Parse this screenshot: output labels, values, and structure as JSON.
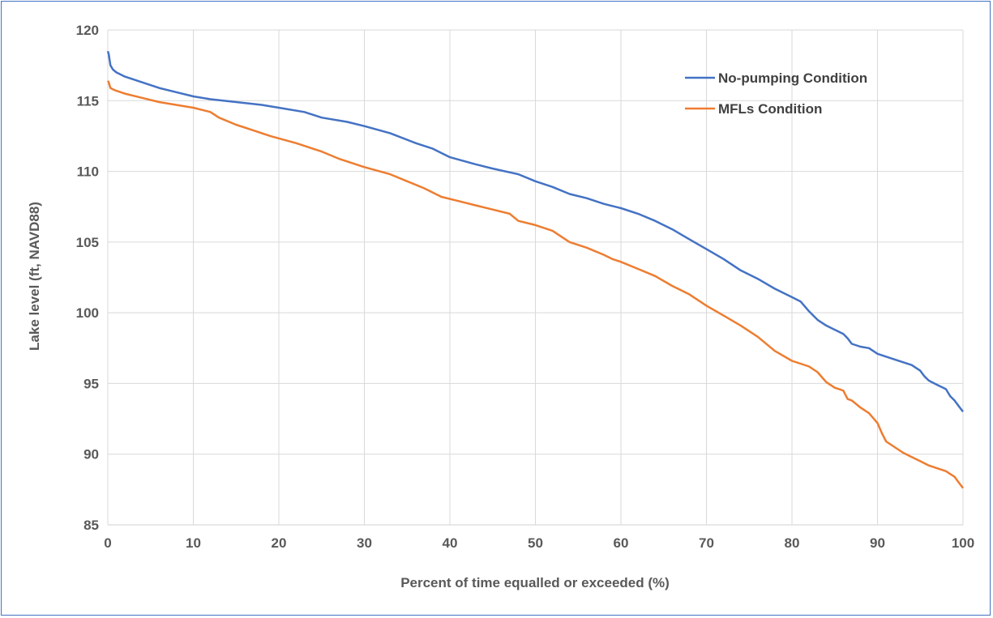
{
  "chart_data": {
    "type": "line",
    "title": "",
    "xlabel": "Percent of time equalled or exceeded (%)",
    "ylabel": "Lake level (ft, NAVD88)",
    "xlim": [
      0,
      100
    ],
    "ylim": [
      85,
      120
    ],
    "x_ticks": [
      "0",
      "10",
      "20",
      "30",
      "40",
      "50",
      "60",
      "70",
      "80",
      "90",
      "100"
    ],
    "y_ticks": [
      "85",
      "90",
      "95",
      "100",
      "105",
      "110",
      "115",
      "120"
    ],
    "x_tick_values": [
      0,
      10,
      20,
      30,
      40,
      50,
      60,
      70,
      80,
      90,
      100
    ],
    "y_tick_values": [
      85,
      90,
      95,
      100,
      105,
      110,
      115,
      120
    ],
    "grid": "vertical and horizontal",
    "legend_position": "top-right",
    "series": [
      {
        "name": "No-pumping Condition",
        "color": "#4472c4",
        "x": [
          0,
          0.1,
          0.3,
          0.6,
          1,
          2,
          4,
          6,
          8,
          10,
          12,
          15,
          18,
          20,
          23,
          25,
          28,
          30,
          33,
          36,
          38,
          40,
          43,
          45,
          48,
          50,
          52,
          54,
          56,
          58,
          60,
          62,
          64,
          66,
          68,
          70,
          72,
          74,
          76,
          78,
          80,
          81,
          82,
          83,
          84,
          85,
          86,
          86.5,
          87,
          88,
          89,
          90,
          92,
          94,
          95,
          95.5,
          96,
          97,
          98,
          98.5,
          99,
          99.5,
          100
        ],
        "y": [
          118.5,
          118.3,
          117.5,
          117.2,
          117.0,
          116.7,
          116.3,
          115.9,
          115.6,
          115.3,
          115.1,
          114.9,
          114.7,
          114.5,
          114.2,
          113.8,
          113.5,
          113.2,
          112.7,
          112.0,
          111.6,
          111.0,
          110.5,
          110.2,
          109.8,
          109.3,
          108.9,
          108.4,
          108.1,
          107.7,
          107.4,
          107.0,
          106.5,
          105.9,
          105.2,
          104.5,
          103.8,
          103.0,
          102.4,
          101.7,
          101.1,
          100.8,
          100.1,
          99.5,
          99.1,
          98.8,
          98.5,
          98.2,
          97.8,
          97.6,
          97.5,
          97.1,
          96.7,
          96.3,
          95.9,
          95.5,
          95.2,
          94.9,
          94.6,
          94.1,
          93.8,
          93.4,
          93.0
        ]
      },
      {
        "name": "MFLs Condition",
        "color": "#ed7d31",
        "x": [
          0,
          0.1,
          0.3,
          0.6,
          1,
          2,
          4,
          6,
          8,
          10,
          12,
          13,
          15,
          17,
          19,
          22,
          25,
          27,
          30,
          33,
          35,
          37,
          39,
          41,
          43,
          45,
          47,
          48,
          50,
          52,
          53,
          54,
          56,
          58,
          59,
          60,
          62,
          64,
          66,
          68,
          70,
          72,
          74,
          76,
          78,
          80,
          81,
          82,
          83,
          84,
          85,
          86,
          86.5,
          87,
          88,
          89,
          90,
          90.5,
          91,
          92,
          93,
          94,
          95,
          96,
          97,
          98,
          98.5,
          99,
          99.5,
          100
        ],
        "y": [
          116.4,
          116.3,
          115.9,
          115.8,
          115.7,
          115.5,
          115.2,
          114.9,
          114.7,
          114.5,
          114.2,
          113.8,
          113.3,
          112.9,
          112.5,
          112.0,
          111.4,
          110.9,
          110.3,
          109.8,
          109.3,
          108.8,
          108.2,
          107.9,
          107.6,
          107.3,
          107.0,
          106.5,
          106.2,
          105.8,
          105.4,
          105.0,
          104.6,
          104.1,
          103.8,
          103.6,
          103.1,
          102.6,
          101.9,
          101.3,
          100.5,
          99.8,
          99.1,
          98.3,
          97.3,
          96.6,
          96.4,
          96.2,
          95.8,
          95.1,
          94.7,
          94.5,
          93.9,
          93.8,
          93.3,
          92.9,
          92.2,
          91.5,
          90.9,
          90.5,
          90.1,
          89.8,
          89.5,
          89.2,
          89.0,
          88.8,
          88.6,
          88.4,
          88.0,
          87.6
        ]
      }
    ]
  }
}
